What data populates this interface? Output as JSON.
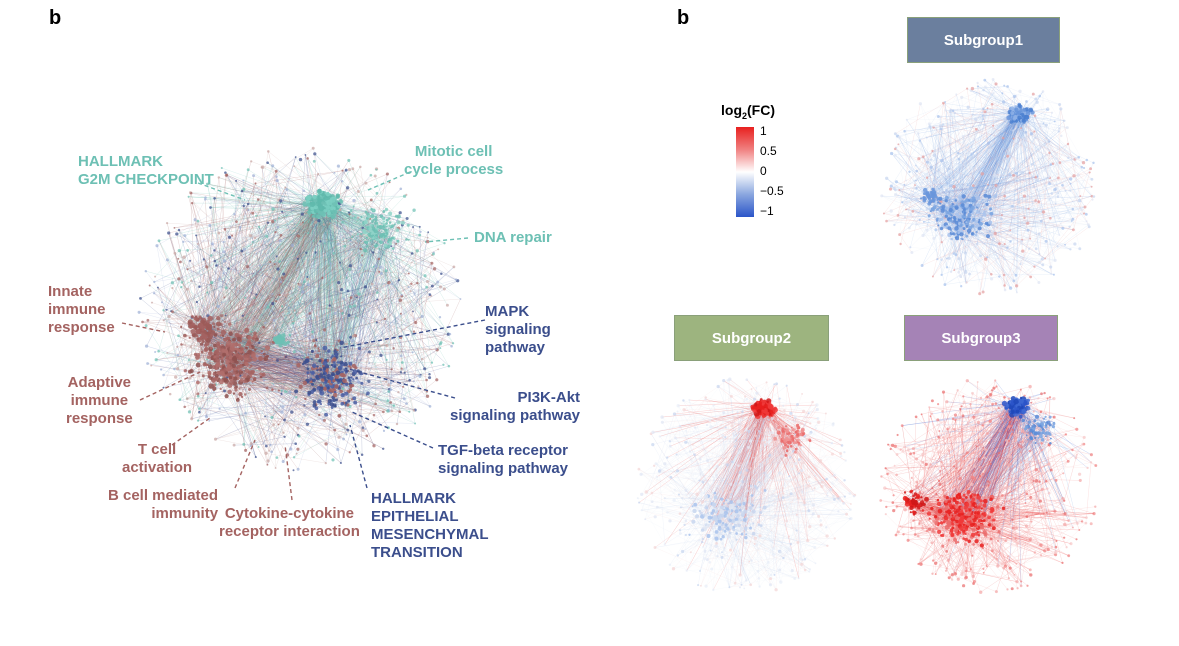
{
  "left_panel": {
    "letter": "b",
    "labels": {
      "g2m": [
        "HALLMARK",
        "G2M CHECKPOINT"
      ],
      "mitotic": [
        "Mitotic cell",
        "cycle process"
      ],
      "dna": "DNA repair",
      "innate": [
        "Innate",
        "immune",
        "response"
      ],
      "adaptive": [
        "Adaptive",
        "immune",
        "response"
      ],
      "tcell": [
        "T cell",
        "activation"
      ],
      "bcell": [
        "B cell mediated",
        "immunity"
      ],
      "cytokine": [
        "Cytokine-cytokine",
        "receptor interaction"
      ],
      "mapk": [
        "MAPK",
        "signaling",
        "pathway"
      ],
      "pi3k": [
        "PI3K-Akt",
        "signaling pathway"
      ],
      "tgf": [
        "TGF-beta receptor",
        "signaling pathway"
      ],
      "emt": [
        "HALLMARK",
        "EPITHELIAL",
        "MESENCHYMAL",
        "TRANSITION"
      ]
    },
    "colors": {
      "teal": "#6dc0b4",
      "brown": "#a46361",
      "navy": "#3b4e8c"
    }
  },
  "right_panel": {
    "letter": "b",
    "legend": {
      "title_main": "log",
      "title_sub": "2",
      "title_rest": "(FC)",
      "ticks": [
        "1",
        "0.5",
        "0",
        "−0.5",
        "−1"
      ]
    },
    "subgroups": [
      {
        "label": "Subgroup1",
        "color": "#6b7f9e"
      },
      {
        "label": "Subgroup2",
        "color": "#9db47f"
      },
      {
        "label": "Subgroup3",
        "color": "#a583b6"
      }
    ]
  }
}
